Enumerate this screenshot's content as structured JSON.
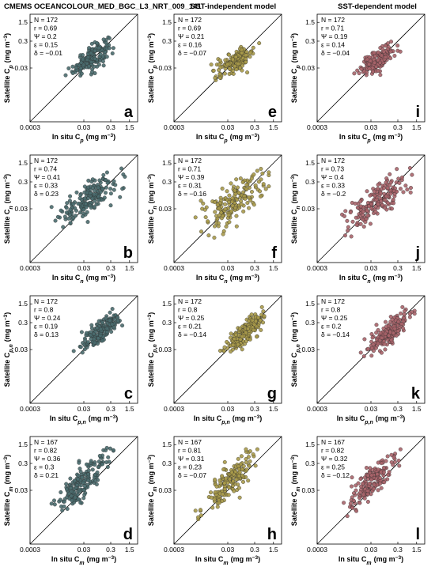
{
  "column_titles": [
    "CMEMS OCEANCOLOUR_MED_BGC_L3_NRT_009_141",
    "SST-independent model",
    "SST-dependent model"
  ],
  "column_colors": [
    "#4a6b6e",
    "#a89a4a",
    "#a8646a"
  ],
  "tick_labels": [
    "0.0003",
    "0.03",
    "0.3",
    "1.5"
  ],
  "chart_data": [
    {
      "panel": "a",
      "type": "scatter",
      "ylabel": "Satellite C",
      "y_sub": "p",
      "xlabel": "In situ C",
      "x_sub": "p",
      "units": "(mg m",
      "units_exp": "−3",
      "units_close": ")",
      "stats": [
        "N = 172",
        "r = 0.69",
        "Ψ = 0.2",
        "ε = 0.15",
        "δ = −0.01"
      ],
      "log_scale": true,
      "xlim": [
        0.0003,
        3
      ],
      "ylim": [
        0.0003,
        3
      ],
      "n_points": 172,
      "x_range": [
        0.01,
        0.3
      ],
      "y_range": [
        0.015,
        0.35
      ],
      "r": 0.69
    },
    {
      "panel": "e",
      "type": "scatter",
      "ylabel": "Satellite C",
      "y_sub": "p",
      "xlabel": "In situ C",
      "x_sub": "p",
      "units": "(mg m",
      "units_exp": "−3",
      "units_close": ")",
      "stats": [
        "N = 172",
        "r = 0.69",
        "Ψ = 0.21",
        "ε = 0.16",
        "δ = −0.07"
      ],
      "log_scale": true,
      "xlim": [
        0.0003,
        3
      ],
      "ylim": [
        0.0003,
        3
      ],
      "n_points": 172,
      "x_range": [
        0.01,
        0.35
      ],
      "y_range": [
        0.015,
        0.2
      ],
      "r": 0.69
    },
    {
      "panel": "i",
      "type": "scatter",
      "ylabel": "Satellite C",
      "y_sub": "p",
      "xlabel": "In situ C",
      "x_sub": "p",
      "units": "(mg m",
      "units_exp": "−3",
      "units_close": ")",
      "stats": [
        "N = 172",
        "r = 0.71",
        "Ψ = 0.19",
        "ε = 0.14",
        "δ = −0.04"
      ],
      "log_scale": true,
      "xlim": [
        0.0003,
        3
      ],
      "ylim": [
        0.0003,
        3
      ],
      "n_points": 172,
      "x_range": [
        0.01,
        0.3
      ],
      "y_range": [
        0.015,
        0.25
      ],
      "r": 0.71
    },
    {
      "panel": "b",
      "type": "scatter",
      "ylabel": "Satellite C",
      "y_sub": "n",
      "xlabel": "In situ C",
      "x_sub": "n",
      "units": "(mg m",
      "units_exp": "−3",
      "units_close": ")",
      "stats": [
        "N = 172",
        "r = 0.74",
        "Ψ = 0.41",
        "ε = 0.33",
        "δ = 0.23"
      ],
      "log_scale": true,
      "xlim": [
        0.0003,
        3
      ],
      "ylim": [
        0.0003,
        3
      ],
      "n_points": 172,
      "x_range": [
        0.003,
        0.8
      ],
      "y_range": [
        0.006,
        0.9
      ],
      "r": 0.74
    },
    {
      "panel": "f",
      "type": "scatter",
      "ylabel": "Satellite C",
      "y_sub": "n",
      "xlabel": "In situ C",
      "x_sub": "n",
      "units": "(mg m",
      "units_exp": "−3",
      "units_close": ")",
      "stats": [
        "N = 172",
        "r = 0.71",
        "Ψ = 0.39",
        "ε = 0.31",
        "δ = −0.16"
      ],
      "log_scale": true,
      "xlim": [
        0.0003,
        3
      ],
      "ylim": [
        0.0003,
        3
      ],
      "n_points": 172,
      "x_range": [
        0.003,
        0.8
      ],
      "y_range": [
        0.004,
        0.8
      ],
      "r": 0.71
    },
    {
      "panel": "j",
      "type": "scatter",
      "ylabel": "Satellite C",
      "y_sub": "n",
      "xlabel": "In situ C",
      "x_sub": "n",
      "units": "(mg m",
      "units_exp": "−3",
      "units_close": ")",
      "stats": [
        "N = 172",
        "r = 0.73",
        "Ψ = 0.4",
        "ε = 0.33",
        "δ = −0.2"
      ],
      "log_scale": true,
      "xlim": [
        0.0003,
        3
      ],
      "ylim": [
        0.0003,
        3
      ],
      "n_points": 172,
      "x_range": [
        0.003,
        0.8
      ],
      "y_range": [
        0.004,
        0.8
      ],
      "r": 0.73
    },
    {
      "panel": "c",
      "type": "scatter",
      "ylabel": "Satellite C",
      "y_sub": "p,n",
      "xlabel": "In situ C",
      "x_sub": "p,n",
      "units": "(mg m",
      "units_exp": "−3",
      "units_close": ")",
      "stats": [
        "N = 172",
        "r = 0.8",
        "Ψ = 0.24",
        "ε = 0.19",
        "δ = 0.13"
      ],
      "log_scale": true,
      "xlim": [
        0.0003,
        3
      ],
      "ylim": [
        0.0003,
        3
      ],
      "n_points": 172,
      "x_range": [
        0.02,
        1.0
      ],
      "y_range": [
        0.025,
        1.0
      ],
      "r": 0.8
    },
    {
      "panel": "g",
      "type": "scatter",
      "ylabel": "Satellite C",
      "y_sub": "p,n",
      "xlabel": "In situ C",
      "x_sub": "p,n",
      "units": "(mg m",
      "units_exp": "−3",
      "units_close": ")",
      "stats": [
        "N = 172",
        "r = 0.8",
        "Ψ = 0.25",
        "ε = 0.21",
        "δ = −0.14"
      ],
      "log_scale": true,
      "xlim": [
        0.0003,
        3
      ],
      "ylim": [
        0.0003,
        3
      ],
      "n_points": 172,
      "x_range": [
        0.02,
        1.0
      ],
      "y_range": [
        0.02,
        0.9
      ],
      "r": 0.8
    },
    {
      "panel": "k",
      "type": "scatter",
      "ylabel": "Satellite C",
      "y_sub": "p,n",
      "xlabel": "In situ C",
      "x_sub": "p,n",
      "units": "(mg m",
      "units_exp": "−3",
      "units_close": ")",
      "stats": [
        "N = 172",
        "r = 0.8",
        "Ψ = 0.25",
        "ε = 0.2",
        "δ = −0.14"
      ],
      "log_scale": true,
      "xlim": [
        0.0003,
        3
      ],
      "ylim": [
        0.0003,
        3
      ],
      "n_points": 172,
      "x_range": [
        0.02,
        1.0
      ],
      "y_range": [
        0.02,
        0.9
      ],
      "r": 0.8
    },
    {
      "panel": "d",
      "type": "scatter",
      "ylabel": "Satellite C",
      "y_sub": "m",
      "xlabel": "In situ C",
      "x_sub": "m",
      "units": "(mg m",
      "units_exp": "−3",
      "units_close": ")",
      "stats": [
        "N = 167",
        "r = 0.82",
        "Ψ = 0.36",
        "ε = 0.3",
        "δ = 0.21"
      ],
      "log_scale": true,
      "xlim": [
        0.0003,
        3
      ],
      "ylim": [
        0.0003,
        3
      ],
      "n_points": 167,
      "x_range": [
        0.003,
        0.3
      ],
      "y_range": [
        0.005,
        0.9
      ],
      "r": 0.82
    },
    {
      "panel": "h",
      "type": "scatter",
      "ylabel": "Satellite C",
      "y_sub": "m",
      "xlabel": "In situ C",
      "x_sub": "m",
      "units": "(mg m",
      "units_exp": "−3",
      "units_close": ")",
      "stats": [
        "N = 167",
        "r = 0.81",
        "Ψ = 0.31",
        "ε = 0.23",
        "δ = −0.07"
      ],
      "log_scale": true,
      "xlim": [
        0.0003,
        3
      ],
      "ylim": [
        0.0003,
        3
      ],
      "n_points": 167,
      "x_range": [
        0.003,
        0.3
      ],
      "y_range": [
        0.004,
        0.8
      ],
      "r": 0.81
    },
    {
      "panel": "l",
      "type": "scatter",
      "ylabel": "Satellite C",
      "y_sub": "m",
      "xlabel": "In situ C",
      "x_sub": "m",
      "units": "(mg m",
      "units_exp": "−3",
      "units_close": ")",
      "stats": [
        "N = 167",
        "r = 0.82",
        "Ψ = 0.32",
        "ε = 0.25",
        "δ = −0.12"
      ],
      "log_scale": true,
      "xlim": [
        0.0003,
        3
      ],
      "ylim": [
        0.0003,
        3
      ],
      "n_points": 167,
      "x_range": [
        0.003,
        0.3
      ],
      "y_range": [
        0.004,
        0.8
      ],
      "r": 0.82
    }
  ]
}
